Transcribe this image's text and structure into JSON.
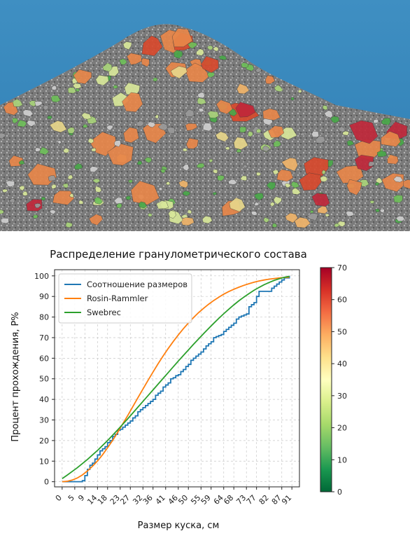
{
  "photo": {
    "description_icon": "rock-pile-photo"
  },
  "chart_data": {
    "type": "line",
    "title": "Распределение гранулометрического состава",
    "xlabel": "Размер куска, см",
    "ylabel": "Процент прохождения, P%",
    "xlim": [
      -3,
      94
    ],
    "ylim": [
      -2.5,
      103
    ],
    "xticks": [
      0,
      5,
      9,
      14,
      18,
      23,
      27,
      32,
      36,
      41,
      46,
      50,
      55,
      59,
      64,
      68,
      73,
      77,
      82,
      87,
      91
    ],
    "yticks": [
      0,
      10,
      20,
      30,
      40,
      50,
      60,
      70,
      80,
      90,
      100
    ],
    "grid": true,
    "legend_position": "top-left",
    "series": [
      {
        "name": "Соотношение размеров",
        "color": "#1f77b4",
        "step": true,
        "x": [
          0,
          8,
          9,
          10,
          11,
          12,
          13,
          14,
          15,
          16,
          17,
          18,
          19,
          20,
          21,
          22,
          23,
          24,
          25,
          26,
          27,
          28,
          29,
          30,
          31,
          32,
          33,
          34,
          35,
          36,
          37,
          38,
          39,
          40,
          41,
          42,
          43,
          44,
          45,
          46,
          47,
          48,
          49,
          50,
          51,
          52,
          53,
          54,
          55,
          56,
          57,
          58,
          59,
          60,
          61,
          62,
          63,
          64,
          65,
          66,
          67,
          68,
          69,
          70,
          71,
          72,
          73,
          74,
          75,
          76,
          77,
          78,
          79,
          80,
          81,
          82,
          83,
          84,
          85,
          86,
          87,
          88,
          89,
          90
        ],
        "y": [
          0,
          0.5,
          3,
          6,
          8,
          9,
          11,
          13,
          15,
          16,
          17,
          19,
          20,
          22,
          23,
          25,
          25.5,
          26.5,
          27.5,
          28.5,
          29.5,
          31,
          32,
          34,
          35,
          36,
          37,
          38,
          39,
          40,
          42,
          43,
          44,
          46,
          47,
          48,
          50,
          50.5,
          51.5,
          52,
          53.5,
          54.5,
          56,
          57,
          59,
          60,
          61,
          62,
          63,
          64.5,
          66,
          67,
          68,
          70,
          70.5,
          71,
          71.5,
          73,
          74,
          75,
          76,
          77,
          79,
          80,
          80.5,
          81,
          81.5,
          85,
          86,
          87,
          90,
          92.5,
          92.5,
          92.5,
          92.5,
          92.5,
          94,
          95,
          96,
          97,
          98,
          99,
          99,
          100
        ]
      },
      {
        "name": "Rosin-Rammler",
        "color": "#ff7f0e",
        "x": [
          0,
          2,
          4,
          6,
          8,
          10,
          12,
          14,
          16,
          18,
          20,
          22,
          24,
          26,
          28,
          30,
          32,
          34,
          36,
          38,
          40,
          42,
          44,
          46,
          48,
          50,
          52,
          54,
          56,
          58,
          60,
          62,
          64,
          66,
          68,
          70,
          72,
          74,
          76,
          78,
          80,
          82,
          84,
          86,
          88,
          90
        ],
        "y": [
          0,
          0.2,
          0.8,
          1.8,
          3.3,
          5.2,
          7.5,
          10.1,
          13.1,
          16.5,
          20.1,
          24.0,
          28.1,
          32.2,
          36.5,
          40.8,
          45.0,
          49.2,
          53.3,
          57.3,
          61.1,
          64.7,
          68.1,
          71.3,
          74.3,
          77.1,
          79.7,
          82.1,
          84.2,
          86.2,
          88.0,
          89.6,
          91.1,
          92.4,
          93.5,
          94.5,
          95.4,
          96.2,
          96.9,
          97.5,
          98.0,
          98.4,
          98.7,
          99.0,
          99.2,
          99.4
        ]
      },
      {
        "name": "Swebrec",
        "color": "#2ca02c",
        "x": [
          0,
          2,
          4,
          6,
          8,
          10,
          12,
          14,
          16,
          18,
          20,
          22,
          24,
          26,
          28,
          30,
          32,
          34,
          36,
          38,
          40,
          42,
          44,
          46,
          48,
          50,
          52,
          54,
          56,
          58,
          60,
          62,
          64,
          66,
          68,
          70,
          72,
          74,
          76,
          78,
          80,
          82,
          84,
          86,
          88,
          90
        ],
        "y": [
          1.5,
          3.2,
          5.0,
          6.8,
          8.8,
          10.8,
          13.0,
          15.2,
          17.6,
          20.0,
          22.6,
          25.2,
          27.9,
          30.6,
          33.4,
          36.2,
          39.0,
          41.8,
          44.6,
          47.4,
          50.2,
          53.0,
          55.8,
          58.6,
          61.3,
          64.0,
          66.7,
          69.3,
          71.9,
          74.4,
          76.9,
          79.3,
          81.6,
          83.8,
          85.9,
          87.9,
          89.7,
          91.4,
          93.0,
          94.4,
          95.7,
          96.8,
          97.8,
          98.6,
          99.3,
          99.8
        ]
      }
    ],
    "colorbar": {
      "min": 0,
      "max": 70,
      "ticks": [
        0,
        10,
        20,
        30,
        40,
        50,
        60,
        70
      ],
      "colors": [
        "#006837",
        "#1a9850",
        "#66bd63",
        "#a6d96a",
        "#d9ef8b",
        "#ffffbf",
        "#fee08b",
        "#fdae61",
        "#f46d43",
        "#d73027",
        "#a50026"
      ]
    }
  }
}
